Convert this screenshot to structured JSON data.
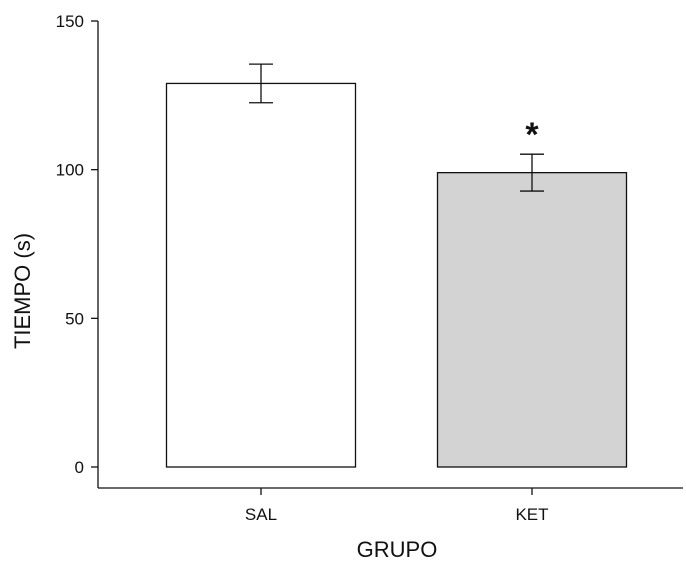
{
  "chart_data": {
    "type": "bar",
    "title": "",
    "xlabel": "GRUPO",
    "ylabel": "TIEMPO (s)",
    "categories": [
      "SAL",
      "KET"
    ],
    "values": [
      129,
      99
    ],
    "errors": [
      6.5,
      6.2
    ],
    "ylim": [
      0,
      150
    ],
    "yticks": [
      0,
      50,
      100,
      150
    ],
    "ytick_labels": [
      "0",
      "50",
      "100",
      "150"
    ],
    "bar_colors": [
      "#ffffff",
      "#d3d3d3"
    ],
    "annotations": [
      {
        "category": "KET",
        "text": "*"
      }
    ],
    "grid": false,
    "legend": "none"
  }
}
